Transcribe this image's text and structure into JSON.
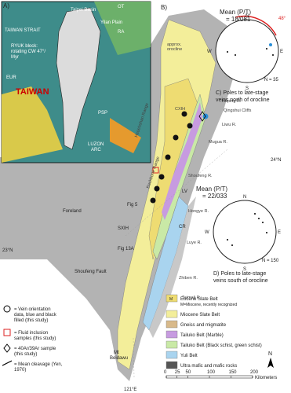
{
  "panel_a": {
    "label": "A)",
    "places": [
      "Taipei Basin",
      "TAIWAN STRAIT",
      "Yilan Plain",
      "RYUK block:",
      "rotating CW 47°/",
      "Myr",
      "OT",
      "RA",
      "EUR",
      "TAIWAN",
      "PSP",
      "LUZON",
      "ARC"
    ]
  },
  "panel_b": {
    "label": "B)",
    "places": [
      "Hsüehshan Range",
      "approx.",
      "orocline",
      "Foreland",
      "Backbone Range",
      "CXIH",
      "Heping R.",
      "Qingshui Cliffs",
      "Liwu R.",
      "Mugua R.",
      "Shoufeng R.",
      "LV",
      "Hongye R.",
      "CR",
      "Fig 5",
      "SXIH",
      "Fig 13A",
      "Shoufeng Fault",
      "Luye R.",
      "Zhiben R.",
      "Taimali R.",
      "Mt",
      "Beidawu"
    ],
    "latitudes": [
      "24°N",
      "23°N"
    ],
    "longitude": "121°E"
  },
  "stereonet_c": {
    "mean_label": "Mean (P/T)",
    "mean_value": "= 18/081",
    "count": "N = 35",
    "rotation": "48°",
    "caption": [
      "C) Poles to late-stage",
      "veins north of orocline"
    ],
    "compass": [
      "N",
      "E",
      "S",
      "W"
    ]
  },
  "stereonet_d": {
    "mean_label": "Mean (P/T)",
    "mean_value": "= 22/033",
    "count": "N = 150",
    "caption": [
      "D) Poles to late-stage",
      "veins south of orocline"
    ],
    "compass": [
      "N",
      "E",
      "S",
      "W"
    ]
  },
  "legend": {
    "units": [
      {
        "label": "Eocene Slate Belt",
        "note": "M=Miocene, recently recognized",
        "mark": "M"
      },
      {
        "label": "Miocene Slate Belt"
      },
      {
        "label": "Gneiss and migmatite"
      },
      {
        "label": "Tailuko Belt (Marble)"
      },
      {
        "label": "Tailuko Belt (Black schist, green schist)"
      },
      {
        "label": "Yuli Belt"
      },
      {
        "label": "Ultra mafic and mafic rocks"
      }
    ],
    "symbols": [
      [
        "= Vein orientation",
        "data, blue and black",
        "filled (this study)"
      ],
      [
        "= Fluid inclusion",
        "samples (this study)"
      ],
      [
        "= 40Ar/39Ar sample",
        "(this study)"
      ],
      [
        "= Mean cleavage (Yen,",
        "1970)"
      ]
    ]
  },
  "scale": {
    "ticks": [
      0,
      25,
      50,
      100,
      150,
      200
    ],
    "unit": "Kilometers",
    "north": "N"
  }
}
